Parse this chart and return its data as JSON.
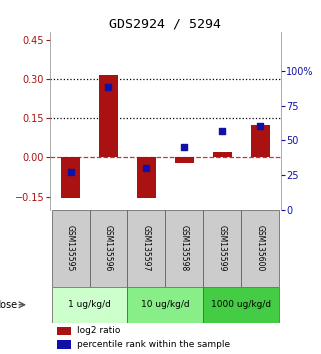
{
  "title": "GDS2924 / 5294",
  "samples": [
    "GSM135595",
    "GSM135596",
    "GSM135597",
    "GSM135598",
    "GSM135599",
    "GSM135600"
  ],
  "log2_ratio": [
    -0.155,
    0.315,
    -0.155,
    -0.02,
    0.02,
    0.125
  ],
  "percentile_rank": [
    27,
    88,
    30,
    45,
    57,
    60
  ],
  "doses": [
    {
      "label": "1 ug/kg/d",
      "color": "#ccffcc",
      "start": 0,
      "end": 1
    },
    {
      "label": "10 ug/kg/d",
      "color": "#88ee88",
      "start": 2,
      "end": 3
    },
    {
      "label": "1000 ug/kg/d",
      "color": "#44cc44",
      "start": 4,
      "end": 5
    }
  ],
  "ylim_left": [
    -0.2,
    0.48
  ],
  "ylim_right": [
    0,
    128
  ],
  "yticks_left": [
    -0.15,
    0.0,
    0.15,
    0.3,
    0.45
  ],
  "yticks_right": [
    0,
    25,
    50,
    75,
    100
  ],
  "hlines": [
    0.15,
    0.3
  ],
  "bar_color": "#aa1111",
  "scatter_color": "#1111aa",
  "sample_box_color": "#cccccc",
  "dose_label": "dose",
  "legend_log2": "log2 ratio",
  "legend_pct": "percentile rank within the sample"
}
